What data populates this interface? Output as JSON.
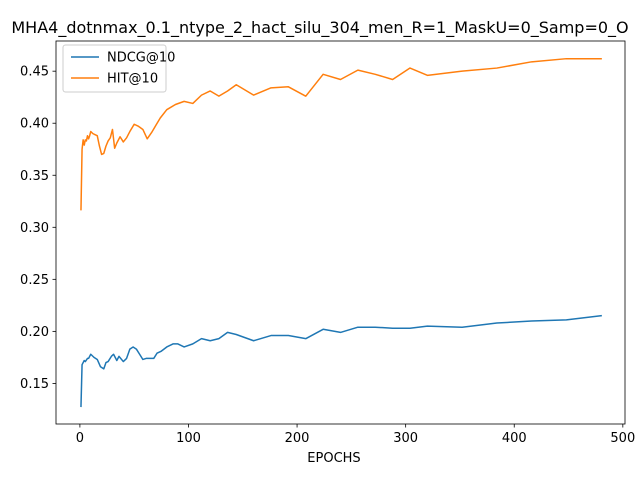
{
  "chart_data": {
    "type": "line",
    "title": "MHA4_dotnmax_0.1_ntype_2_hact_silu_304_men_R=1_MaskU=0_Samp=0_O",
    "xlabel": "EPOCHS",
    "ylabel": "",
    "xlim": [
      -22,
      502
    ],
    "ylim": [
      0.111,
      0.479
    ],
    "xticks": [
      0,
      100,
      200,
      300,
      400,
      500
    ],
    "yticks": [
      0.15,
      0.2,
      0.25,
      0.3,
      0.35,
      0.4,
      0.45
    ],
    "ytick_labels": [
      "0.15",
      "0.20",
      "0.25",
      "0.30",
      "0.35",
      "0.40",
      "0.45"
    ],
    "legend_position": "upper-left",
    "grid": false,
    "series": [
      {
        "name": "NDCG@10",
        "color": "#1f77b4",
        "x": [
          1,
          2,
          4,
          5,
          7,
          8,
          10,
          13,
          16,
          19,
          22,
          24,
          26,
          29,
          31,
          34,
          36,
          40,
          43,
          46,
          49,
          52,
          55,
          58,
          61,
          64,
          68,
          71,
          75,
          80,
          86,
          90,
          96,
          104,
          112,
          120,
          128,
          136,
          144,
          160,
          176,
          192,
          208,
          224,
          240,
          256,
          272,
          288,
          304,
          320,
          352,
          384,
          416,
          448,
          480
        ],
        "y": [
          0.128,
          0.168,
          0.172,
          0.171,
          0.174,
          0.174,
          0.178,
          0.175,
          0.173,
          0.166,
          0.164,
          0.17,
          0.171,
          0.176,
          0.178,
          0.172,
          0.176,
          0.171,
          0.174,
          0.183,
          0.185,
          0.183,
          0.178,
          0.173,
          0.174,
          0.174,
          0.174,
          0.179,
          0.181,
          0.185,
          0.188,
          0.188,
          0.185,
          0.188,
          0.193,
          0.191,
          0.193,
          0.199,
          0.197,
          0.191,
          0.196,
          0.196,
          0.193,
          0.202,
          0.199,
          0.204,
          0.204,
          0.203,
          0.203,
          0.205,
          0.204,
          0.208,
          0.21,
          0.211,
          0.215
        ]
      },
      {
        "name": "HIT@10",
        "color": "#ff7f0e",
        "x": [
          1,
          2,
          3,
          4,
          5,
          6,
          7,
          8,
          9,
          10,
          12,
          14,
          16,
          18,
          20,
          22,
          24,
          26,
          28,
          30,
          32,
          34,
          37,
          40,
          43,
          46,
          50,
          54,
          58,
          62,
          66,
          70,
          74,
          80,
          88,
          96,
          104,
          112,
          120,
          128,
          136,
          144,
          160,
          176,
          192,
          208,
          224,
          240,
          256,
          272,
          288,
          304,
          320,
          352,
          384,
          416,
          448,
          480
        ],
        "y": [
          0.317,
          0.375,
          0.384,
          0.379,
          0.384,
          0.383,
          0.388,
          0.385,
          0.388,
          0.392,
          0.39,
          0.389,
          0.388,
          0.378,
          0.37,
          0.371,
          0.378,
          0.383,
          0.386,
          0.394,
          0.376,
          0.381,
          0.387,
          0.382,
          0.386,
          0.392,
          0.399,
          0.397,
          0.394,
          0.385,
          0.391,
          0.398,
          0.405,
          0.413,
          0.418,
          0.421,
          0.419,
          0.427,
          0.431,
          0.426,
          0.431,
          0.437,
          0.427,
          0.434,
          0.435,
          0.426,
          0.447,
          0.442,
          0.451,
          0.447,
          0.442,
          0.453,
          0.446,
          0.45,
          0.453,
          0.459,
          0.462,
          0.462
        ]
      }
    ]
  }
}
